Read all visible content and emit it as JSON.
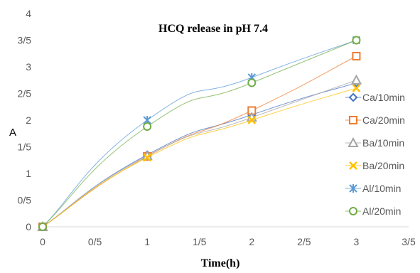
{
  "chart_data": {
    "type": "line",
    "title": "HCQ release in pH 7.4",
    "xlabel": "Time(h)",
    "ylabel": "A",
    "x": [
      0,
      1,
      2,
      3
    ],
    "xlim": [
      0,
      3.5
    ],
    "ylim": [
      0,
      4
    ],
    "x_ticks": [
      {
        "value": 0,
        "label": "0"
      },
      {
        "value": 0.5,
        "label": "0/5"
      },
      {
        "value": 1,
        "label": "1"
      },
      {
        "value": 1.5,
        "label": "1/5"
      },
      {
        "value": 2,
        "label": "2"
      },
      {
        "value": 2.5,
        "label": "2/5"
      },
      {
        "value": 3,
        "label": "3"
      },
      {
        "value": 3.5,
        "label": "3/5"
      }
    ],
    "y_ticks": [
      {
        "value": 0,
        "label": "0"
      },
      {
        "value": 0.5,
        "label": "0/5"
      },
      {
        "value": 1,
        "label": "1"
      },
      {
        "value": 1.5,
        "label": "1/5"
      },
      {
        "value": 2,
        "label": "2"
      },
      {
        "value": 2.5,
        "label": "2/5"
      },
      {
        "value": 3,
        "label": "3"
      },
      {
        "value": 3.5,
        "label": "3/5"
      },
      {
        "value": 4,
        "label": "4"
      }
    ],
    "grid": false,
    "legend_position": "right",
    "series": [
      {
        "name": "Ca/10min",
        "values": [
          0,
          1.35,
          2.1,
          2.7
        ],
        "color": "#4472C4",
        "marker": "diamond"
      },
      {
        "name": "Ca/20min",
        "values": [
          0,
          1.32,
          2.18,
          3.2
        ],
        "color": "#ED7D31",
        "marker": "square"
      },
      {
        "name": "Ba/10min",
        "values": [
          0,
          1.33,
          2.05,
          2.75
        ],
        "color": "#A5A5A5",
        "marker": "triangle"
      },
      {
        "name": "Ba/20min",
        "values": [
          0,
          1.3,
          2.0,
          2.6
        ],
        "color": "#FFC000",
        "marker": "x"
      },
      {
        "name": "Al/10min",
        "values": [
          0,
          2.0,
          2.8,
          3.5
        ],
        "color": "#5B9BD5",
        "marker": "star"
      },
      {
        "name": "Al/20min",
        "values": [
          0,
          1.88,
          2.7,
          3.5
        ],
        "color": "#70AD47",
        "marker": "circle"
      }
    ]
  }
}
